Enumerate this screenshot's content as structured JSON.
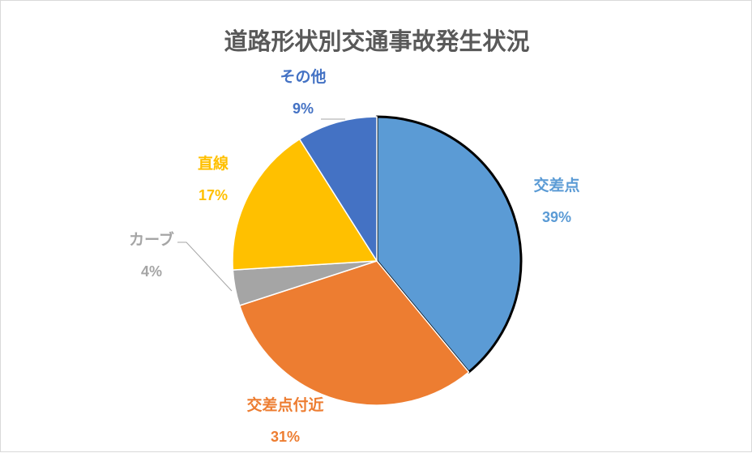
{
  "chart_data": {
    "type": "pie",
    "title": "道路形状別交通事故発生状況",
    "legend": "none",
    "slices": [
      {
        "label": "交差点",
        "value": 39,
        "value_label": "39%",
        "color": "#5b9bd5"
      },
      {
        "label": "交差点付近",
        "value": 31,
        "value_label": "31%",
        "color": "#ed7d31"
      },
      {
        "label": "カーブ",
        "value": 4,
        "value_label": "4%",
        "color": "#a5a5a5"
      },
      {
        "label": "直線",
        "value": 17,
        "value_label": "17%",
        "color": "#ffc000"
      },
      {
        "label": "その他",
        "value": 9,
        "value_label": "9%",
        "color": "#4472c4"
      }
    ],
    "highlighted_slice": "交差点"
  }
}
